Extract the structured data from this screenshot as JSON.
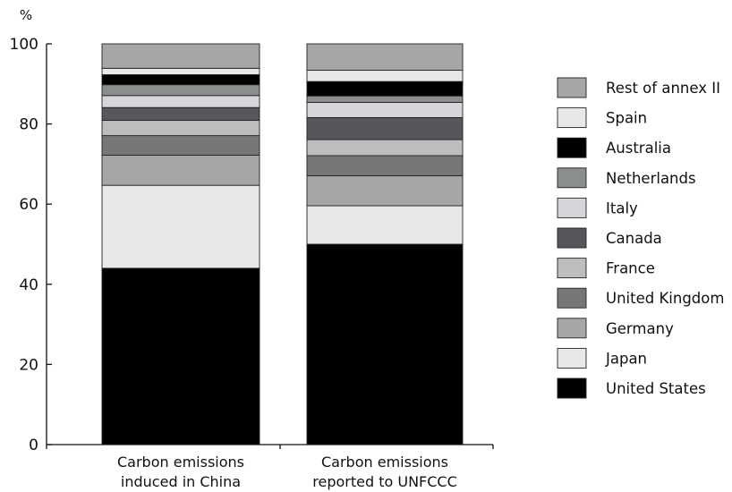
{
  "chart_data": {
    "type": "bar",
    "stacked": true,
    "ylabel": "%",
    "ylim": [
      0,
      100
    ],
    "yticks": [
      0,
      20,
      40,
      60,
      80,
      100
    ],
    "grid": false,
    "legend_position": "right",
    "categories": [
      [
        "Carbon emissions",
        "induced in China"
      ],
      [
        "Carbon emissions",
        "reported to UNFCCC"
      ]
    ],
    "series": [
      {
        "name": "United States",
        "color": "#000000",
        "values": [
          44.0,
          50.0
        ]
      },
      {
        "name": "Japan",
        "color": "#e8e8e8",
        "values": [
          20.7,
          9.6
        ]
      },
      {
        "name": "Germany",
        "color": "#a6a6a6",
        "values": [
          7.5,
          7.5
        ]
      },
      {
        "name": "United Kingdom",
        "color": "#777777",
        "values": [
          4.9,
          5.0
        ]
      },
      {
        "name": "France",
        "color": "#bdbdc0",
        "values": [
          3.8,
          4.0
        ]
      },
      {
        "name": "Canada",
        "color": "#55575b",
        "values": [
          3.2,
          5.5
        ]
      },
      {
        "name": "Italy",
        "color": "#d6d6da",
        "values": [
          3.0,
          3.8
        ]
      },
      {
        "name": "Netherlands",
        "color": "#8a8e8e",
        "values": [
          2.7,
          1.6
        ]
      },
      {
        "name": "Australia",
        "color": "#000000",
        "values": [
          2.5,
          3.6
        ]
      },
      {
        "name": "Spain",
        "color": "#e8e8e8",
        "values": [
          1.6,
          2.8
        ]
      },
      {
        "name": "Rest of annex II",
        "color": "#a6a6a6",
        "values": [
          6.1,
          6.6
        ]
      }
    ]
  }
}
